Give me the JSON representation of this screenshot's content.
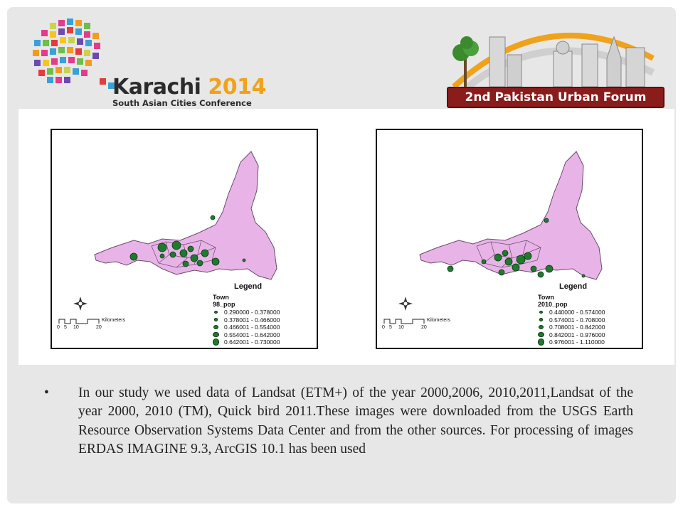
{
  "header": {
    "logo_title_city": "Karachi",
    "logo_title_year": "2014",
    "logo_subtitle": "South Asian Cities Conference",
    "forum_banner": "2nd Pakistan Urban Forum"
  },
  "colors": {
    "district_fill": "#e8b4e8",
    "district_stroke": "#6a4a6a",
    "circle_fill": "#1f7a2e",
    "slide_bg": "#e7e7e7",
    "banner": "#8a1c1c",
    "logo_year": "#f0a21a"
  },
  "maps": [
    {
      "legend_title": "Legend",
      "layer_name": "Town",
      "field_name": "98_pop",
      "classes": [
        {
          "label": "0.290000 - 0.378000",
          "size_rank": 1
        },
        {
          "label": "0.378001 - 0.466000",
          "size_rank": 2
        },
        {
          "label": "0.466001 - 0.554000",
          "size_rank": 3
        },
        {
          "label": "0.554001 - 0.642000",
          "size_rank": 4
        },
        {
          "label": "0.642001 - 0.730000",
          "size_rank": 5
        }
      ],
      "scale_label": "Kilometers",
      "scale_ticks": [
        "0",
        "5",
        "10",
        "20"
      ],
      "north_icon": "compass-rose-icon"
    },
    {
      "legend_title": "Legend",
      "layer_name": "Town",
      "field_name": "2010_pop",
      "classes": [
        {
          "label": "0.440000 - 0.574000",
          "size_rank": 1
        },
        {
          "label": "0.574001 - 0.708000",
          "size_rank": 2
        },
        {
          "label": "0.708001 - 0.842000",
          "size_rank": 3
        },
        {
          "label": "0.842001 - 0.976000",
          "size_rank": 4
        },
        {
          "label": "0.976001 - 1.110000",
          "size_rank": 5
        }
      ],
      "scale_label": "Kilometers",
      "scale_ticks": [
        "0",
        "5",
        "10",
        "20"
      ],
      "north_icon": "compass-rose-icon"
    }
  ],
  "body": {
    "bullet_text": "In our study we used data of Landsat (ETM+) of the year 2000,2006, 2010,2011,Landsat of the year 2000, 2010 (TM), Quick bird 2011.These images were downloaded from the USGS Earth Resource Observation Systems Data Center and from the other sources. For processing of images ERDAS IMAGINE 9.3, ArcGIS 10.1 has been used"
  }
}
